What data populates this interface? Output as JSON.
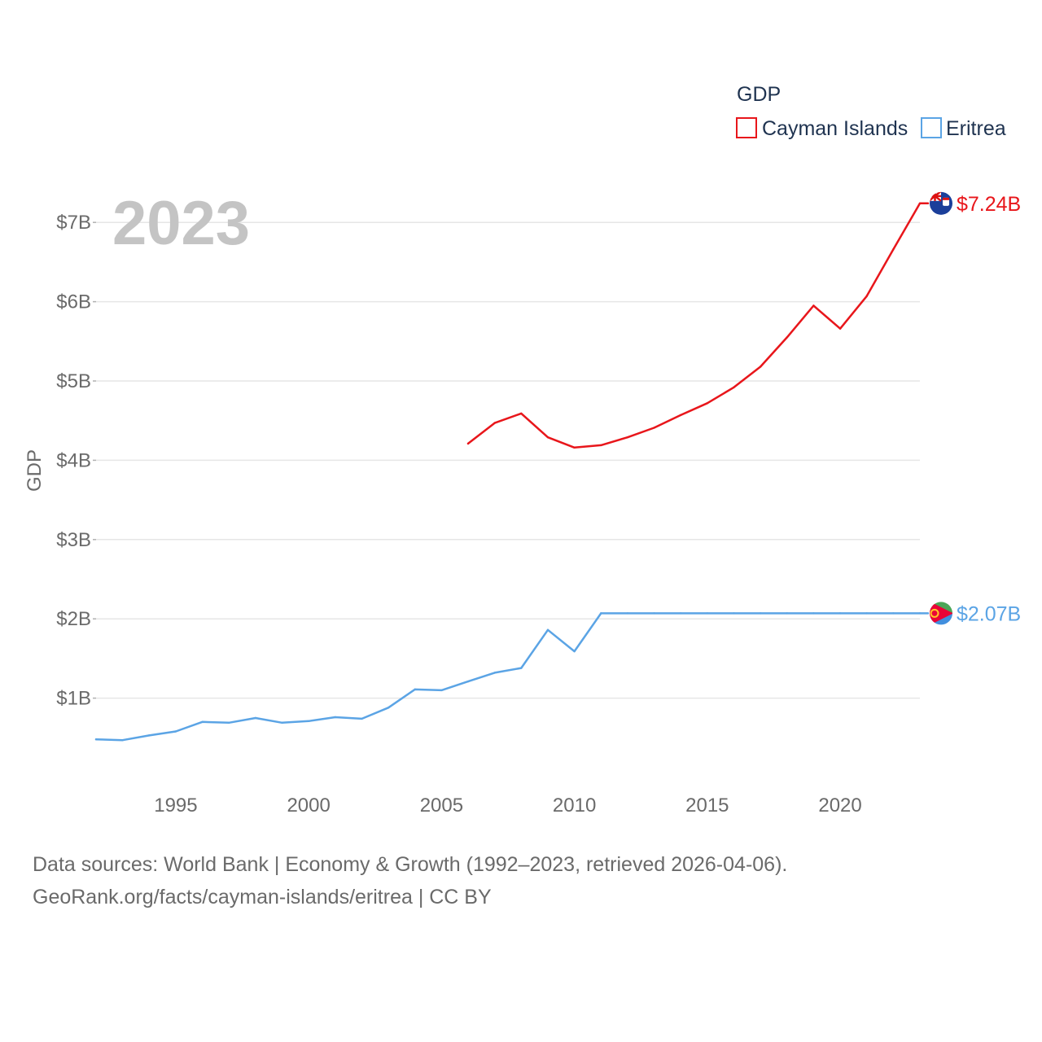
{
  "chart_data": {
    "type": "line",
    "title": "GDP",
    "year_watermark": "2023",
    "ylabel": "GDP",
    "xlabel": "",
    "xlim": [
      1992,
      2023
    ],
    "ylim": [
      0,
      7.6
    ],
    "x_ticks": [
      1995,
      2000,
      2005,
      2010,
      2015,
      2020
    ],
    "y_ticks": [
      {
        "value": 1,
        "label": "$1B"
      },
      {
        "value": 2,
        "label": "$2B"
      },
      {
        "value": 3,
        "label": "$3B"
      },
      {
        "value": 4,
        "label": "$4B"
      },
      {
        "value": 5,
        "label": "$5B"
      },
      {
        "value": 6,
        "label": "$6B"
      },
      {
        "value": 7,
        "label": "$7B"
      }
    ],
    "grid": true,
    "legend": "top-right",
    "series": [
      {
        "name": "Cayman Islands",
        "color": "#e8161b",
        "end_label": "$7.24B",
        "flag_icon": "cayman-islands-flag-icon",
        "x": [
          2006,
          2007,
          2008,
          2009,
          2010,
          2011,
          2012,
          2013,
          2014,
          2015,
          2016,
          2017,
          2018,
          2019,
          2020,
          2021,
          2022,
          2023
        ],
        "values": [
          4.21,
          4.47,
          4.59,
          4.29,
          4.16,
          4.19,
          4.29,
          4.41,
          4.57,
          4.72,
          4.92,
          5.18,
          5.55,
          5.95,
          5.66,
          6.07,
          6.66,
          7.24
        ]
      },
      {
        "name": "Eritrea",
        "color": "#5ba4e5",
        "end_label": "$2.07B",
        "flag_icon": "eritrea-flag-icon",
        "x": [
          1992,
          1993,
          1994,
          1995,
          1996,
          1997,
          1998,
          1999,
          2000,
          2001,
          2002,
          2003,
          2004,
          2005,
          2006,
          2007,
          2008,
          2009,
          2010,
          2011,
          2012,
          2013,
          2014,
          2015,
          2016,
          2017,
          2018,
          2019,
          2020,
          2021,
          2022,
          2023
        ],
        "values": [
          0.48,
          0.47,
          0.53,
          0.58,
          0.7,
          0.69,
          0.75,
          0.69,
          0.71,
          0.76,
          0.74,
          0.88,
          1.11,
          1.1,
          1.21,
          1.32,
          1.38,
          1.86,
          1.59,
          2.07,
          2.07,
          2.07,
          2.07,
          2.07,
          2.07,
          2.07,
          2.07,
          2.07,
          2.07,
          2.07,
          2.07,
          2.07
        ]
      }
    ]
  },
  "footer": {
    "line1": "Data sources: World Bank | Economy & Growth (1992–2023, retrieved 2026-04-06).",
    "line2": "GeoRank.org/facts/cayman-islands/eritrea | CC BY"
  }
}
